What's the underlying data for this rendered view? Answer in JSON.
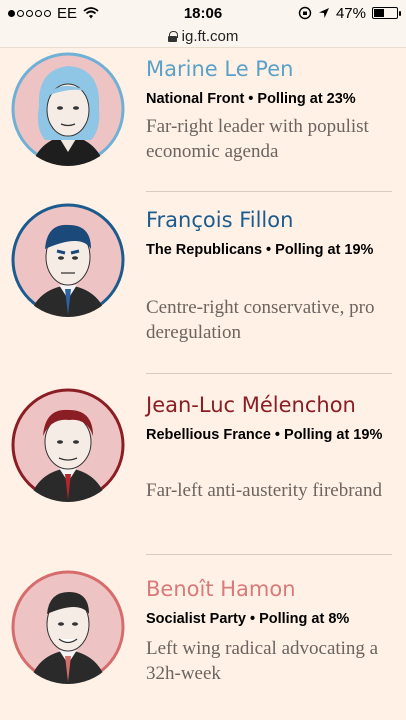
{
  "status": {
    "carrier": "EE",
    "time": "18:06",
    "battery_percent": "47%",
    "battery_level": 0.47,
    "signal_bars": 1
  },
  "url": "ig.ft.com",
  "candidates": [
    {
      "name": "Marine Le Pen",
      "party_line": "National Front • Polling at 23%",
      "description": "Far-right leader with populist economic agenda",
      "name_color": "#5aa1c9",
      "ring_color": "#6eb0d6"
    },
    {
      "name": "François Fillon",
      "party_line": "The Republicans • Polling at 19%",
      "description": "Centre-right conservative, pro deregulation",
      "name_color": "#1b5b8e",
      "ring_color": "#1b5b8e"
    },
    {
      "name": "Jean-Luc Mélenchon",
      "party_line": "Rebellious France • Polling at 19%",
      "description": "Far-left anti-austerity firebrand",
      "name_color": "#8b1d24",
      "ring_color": "#8b1d24"
    },
    {
      "name": "Benoît Hamon",
      "party_line": "Socialist Party • Polling at 8%",
      "description": "Left wing radical advocating a 32h-week",
      "name_color": "#d97a7a",
      "ring_color": "#d66c6c"
    }
  ]
}
